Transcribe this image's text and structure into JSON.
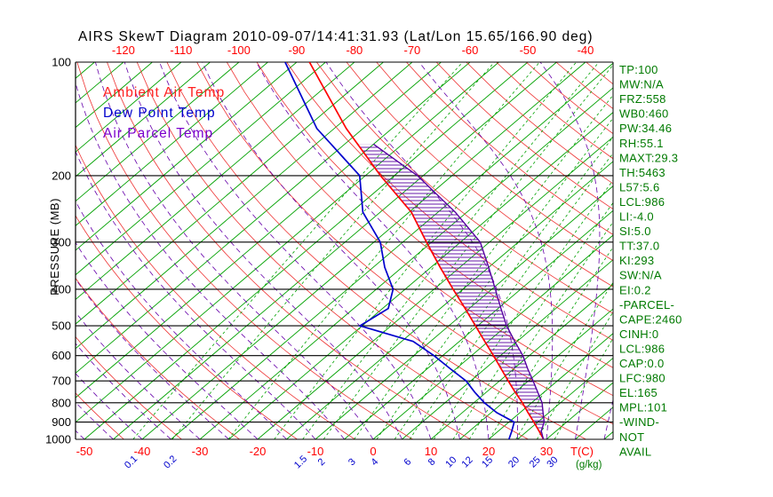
{
  "title": "AIRS SkewT Diagram 2010-09-07/14:41:31.93 (Lat/Lon 15.65/166.90 deg)",
  "legend": {
    "items": [
      {
        "label": "Ambient Air Temp",
        "color": "#FF2020"
      },
      {
        "label": "Dew Point Temp",
        "color": "#0000CC"
      },
      {
        "label": "Air Parcel Temp",
        "color": "#7A00CC"
      }
    ]
  },
  "axes": {
    "pressure_axis_label": "PRESSURE (MB)",
    "pressure_label_color": "#000000",
    "pressure_levels": [
      100,
      200,
      300,
      400,
      500,
      600,
      700,
      800,
      900,
      1000
    ],
    "top_temperature_labels": [
      -120,
      -110,
      -100,
      -90,
      -80,
      -70,
      -60,
      -50,
      -40
    ],
    "top_label_color": "#FF0000",
    "bottom_temperature_labels": [
      -50,
      -40,
      -30,
      -20,
      -10,
      0,
      10,
      20,
      30
    ],
    "bottom_label_color": "#FF0000",
    "temperature_unit_label": "T(C)",
    "mixing_ratio_labels": [
      0.1,
      0.2,
      1.5,
      2,
      3,
      4,
      6,
      8,
      10,
      12,
      15,
      20,
      25,
      30
    ],
    "mixing_label_color": "#0000CC",
    "mixing_ratio_unit_label": "(g/kg)",
    "mixing_unit_color": "#007A00"
  },
  "stats_panel": {
    "color": "#007A00",
    "lines": [
      "TP:100",
      "MW:N/A",
      "FRZ:558",
      "WB0:460",
      "PW:34.46",
      "RH:55.1",
      "MAXT:29.3",
      "TH:5463",
      "L57:5.6",
      "LCL:986",
      "LI:-4.0",
      "SI:5.0",
      "TT:37.0",
      "KI:293",
      "SW:N/A",
      "EI:0.2",
      "-PARCEL-",
      "CAPE:2460",
      "CINH:0",
      "LCL:986",
      "CAP:0.0",
      "LFC:980",
      "EL:165",
      "MPL:101",
      "-WIND-",
      "NOT",
      "AVAIL"
    ]
  },
  "chart_data": {
    "type": "line",
    "subtype": "skewt_log_p",
    "title": "AIRS SkewT Diagram 2010-09-07/14:41:31.93 (Lat/Lon 15.65/166.90 deg)",
    "pressure_axis": {
      "label": "PRESSURE (MB)",
      "range": [
        100,
        1000
      ],
      "scale": "log"
    },
    "temperature_axis": {
      "label": "T(C)",
      "surface_range": [
        -50,
        40
      ],
      "skew": "45deg"
    },
    "grid": {
      "isotherms": {
        "color": "#00A100",
        "style": "solid",
        "step_c": 5
      },
      "dry_adiabats": {
        "color": "#EE3333",
        "style": "solid",
        "theta_k_min": 210,
        "theta_k_max": 470,
        "step_k": 10
      },
      "moist_adiabats": {
        "color": "#6600AA",
        "style": "dashed",
        "surface_t_min": -60,
        "surface_t_max": 40,
        "step_c": 5
      },
      "mixing_ratio_lines": {
        "color": "#00A100",
        "style": "dashed",
        "values": [
          0.1,
          0.2,
          0.5,
          1,
          1.5,
          2,
          3,
          4,
          5,
          6,
          8,
          10,
          12,
          15,
          20,
          25,
          30
        ]
      }
    },
    "series": [
      {
        "name": "Ambient Air Temp",
        "color": "#FF0000",
        "points": [
          [
            1000,
            29.5
          ],
          [
            950,
            27.0
          ],
          [
            900,
            24.3
          ],
          [
            850,
            21.4
          ],
          [
            800,
            18.4
          ],
          [
            750,
            15.0
          ],
          [
            700,
            11.5
          ],
          [
            650,
            7.8
          ],
          [
            600,
            3.8
          ],
          [
            550,
            -0.6
          ],
          [
            500,
            -5.4
          ],
          [
            450,
            -10.7
          ],
          [
            400,
            -16.7
          ],
          [
            350,
            -23.4
          ],
          [
            300,
            -30.9
          ],
          [
            250,
            -39.6
          ],
          [
            200,
            -52.4
          ],
          [
            150,
            -67.9
          ],
          [
            100,
            -87.8
          ]
        ]
      },
      {
        "name": "Dew Point Temp",
        "color": "#0000CC",
        "points": [
          [
            1000,
            23.5
          ],
          [
            950,
            22.3
          ],
          [
            900,
            20.9
          ],
          [
            850,
            16.0
          ],
          [
            800,
            11.8
          ],
          [
            750,
            8.0
          ],
          [
            700,
            4.2
          ],
          [
            650,
            -1.0
          ],
          [
            600,
            -6.5
          ],
          [
            550,
            -13.0
          ],
          [
            500,
            -25.4
          ],
          [
            450,
            -24.0
          ],
          [
            400,
            -27.1
          ],
          [
            350,
            -33.0
          ],
          [
            300,
            -38.9
          ],
          [
            250,
            -48.0
          ],
          [
            200,
            -56.0
          ],
          [
            150,
            -73.0
          ],
          [
            100,
            -92.0
          ]
        ]
      },
      {
        "name": "Air Parcel Temp",
        "color": "#5500A0",
        "points": [
          [
            1000,
            29.5
          ],
          [
            986,
            28.9
          ],
          [
            950,
            27.4
          ],
          [
            900,
            26.1
          ],
          [
            850,
            24.0
          ],
          [
            800,
            21.8
          ],
          [
            750,
            18.9
          ],
          [
            700,
            15.8
          ],
          [
            650,
            12.4
          ],
          [
            600,
            8.9
          ],
          [
            550,
            4.6
          ],
          [
            500,
            0.0
          ],
          [
            450,
            -4.5
          ],
          [
            400,
            -9.4
          ],
          [
            350,
            -15.0
          ],
          [
            300,
            -21.6
          ],
          [
            250,
            -32.0
          ],
          [
            200,
            -46.0
          ],
          [
            165,
            -60.0
          ]
        ]
      }
    ],
    "cape_region": {
      "between": [
        "Ambient Air Temp",
        "Air Parcel Temp"
      ],
      "from_pressure_mb": 986,
      "to_pressure_mb": 165,
      "hatch": "horizontal",
      "color": "#5500A0"
    }
  }
}
